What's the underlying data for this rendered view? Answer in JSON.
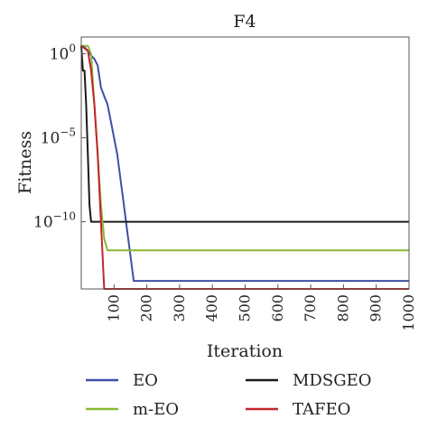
{
  "chart_data": {
    "type": "line",
    "title": "F4",
    "xlabel": "Iteration",
    "ylabel": "Fitness",
    "xlim": [
      0,
      1000
    ],
    "ylim": [
      1e-14,
      10
    ],
    "yscale": "log",
    "x_ticks": [
      100,
      200,
      300,
      400,
      500,
      600,
      700,
      800,
      900,
      1000
    ],
    "x_tick_labels": [
      "100",
      "200",
      "300",
      "400",
      "500",
      "600",
      "700",
      "800",
      "900",
      "1000"
    ],
    "y_ticks": [
      {
        "value": 1,
        "base": "10",
        "exp": "0"
      },
      {
        "value": 1e-05,
        "base": "10",
        "exp": "−5"
      },
      {
        "value": 1e-10,
        "base": "10",
        "exp": "−10"
      }
    ],
    "grid": false,
    "legend_position": "bottom",
    "series": [
      {
        "name": "EO",
        "color": "#3f4fa8",
        "x": [
          0,
          10,
          20,
          30,
          40,
          50,
          60,
          70,
          80,
          90,
          100,
          110,
          120,
          130,
          140,
          150,
          160,
          170,
          1000
        ],
        "y": [
          3,
          2.5,
          1.5,
          0.8,
          0.5,
          0.2,
          0.01,
          0.003,
          0.001,
          0.0001,
          1e-05,
          1e-06,
          3e-08,
          1e-09,
          3e-11,
          1e-12,
          3e-14,
          3e-14,
          3e-14
        ]
      },
      {
        "name": "MDSGEO",
        "color": "#1a1a1a",
        "x": [
          0,
          5,
          10,
          15,
          20,
          25,
          30,
          1000
        ],
        "y": [
          3,
          0.1,
          0.1,
          0.001,
          1e-06,
          1e-09,
          1e-10,
          1e-10
        ]
      },
      {
        "name": "m-EO",
        "color": "#8ab832",
        "x": [
          0,
          20,
          30,
          40,
          50,
          60,
          70,
          80,
          1000
        ],
        "y": [
          3,
          3,
          1,
          0.001,
          1e-06,
          1e-09,
          1e-11,
          2e-12,
          2e-12
        ]
      },
      {
        "name": "TAFEO",
        "color": "#c0262c",
        "x": [
          0,
          20,
          30,
          40,
          50,
          60,
          70,
          80,
          1000
        ],
        "y": [
          3,
          1.5,
          0.1,
          0.001,
          1e-06,
          1e-10,
          1e-14,
          1e-14,
          1e-14
        ]
      }
    ]
  }
}
